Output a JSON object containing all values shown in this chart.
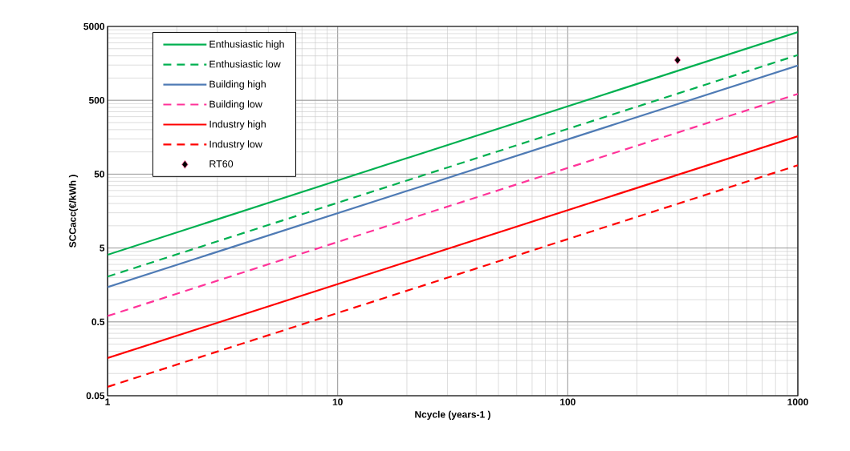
{
  "chart_data": {
    "type": "line",
    "xlabel": "Ncycle (years-1 )",
    "ylabel": "SCCacc(€/kWh )",
    "log": "xy",
    "grid": true,
    "legend": "top left",
    "xlim": [
      1,
      1000
    ],
    "ylim": [
      0.05,
      5000
    ],
    "xticks": [
      1,
      10,
      100,
      1000
    ],
    "yticks": [
      0.05,
      0.5,
      5,
      50,
      500,
      5000
    ],
    "series": [
      {
        "name": "Enthusiastic high",
        "line_style": "solid",
        "marker": "none",
        "color": "#00b050",
        "x": [
          1,
          1000
        ],
        "values": [
          4.05,
          4200
        ]
      },
      {
        "name": "Enthusiastic low",
        "line_style": "dashed",
        "marker": "none",
        "color": "#00b050",
        "x": [
          1,
          1000
        ],
        "values": [
          2.05,
          2050
        ]
      },
      {
        "name": "Building high",
        "line_style": "solid",
        "marker": "none",
        "color": "#4f7bb5",
        "x": [
          1,
          1000
        ],
        "values": [
          1.48,
          1480
        ]
      },
      {
        "name": "Building low",
        "line_style": "dashed",
        "marker": "none",
        "color": "#ff3399",
        "x": [
          1,
          1000
        ],
        "values": [
          0.6,
          610
        ]
      },
      {
        "name": "Industry high",
        "line_style": "solid",
        "marker": "none",
        "color": "#ff0000",
        "x": [
          1,
          1000
        ],
        "values": [
          0.162,
          163
        ]
      },
      {
        "name": "Industry low",
        "line_style": "dashed",
        "marker": "none",
        "color": "#ff0000",
        "x": [
          1,
          1000
        ],
        "values": [
          0.066,
          66
        ]
      },
      {
        "name": "RT60",
        "type": "scatter",
        "marker": "diamond",
        "color": "#000000",
        "x": [
          300
        ],
        "values": [
          1750
        ]
      }
    ]
  }
}
